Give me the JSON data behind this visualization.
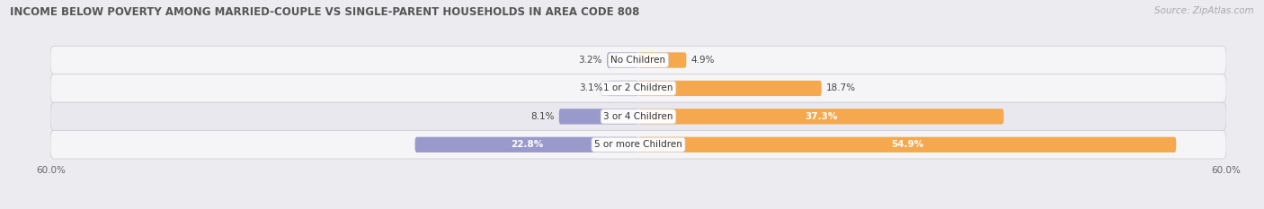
{
  "title": "INCOME BELOW POVERTY AMONG MARRIED-COUPLE VS SINGLE-PARENT HOUSEHOLDS IN AREA CODE 808",
  "source": "Source: ZipAtlas.com",
  "categories": [
    "No Children",
    "1 or 2 Children",
    "3 or 4 Children",
    "5 or more Children"
  ],
  "married_values": [
    3.2,
    3.1,
    8.1,
    22.8
  ],
  "single_values": [
    4.9,
    18.7,
    37.3,
    54.9
  ],
  "married_color": "#9999cc",
  "single_color": "#f5a84e",
  "xlim": 60.0,
  "axis_label_left": "60.0%",
  "axis_label_right": "60.0%",
  "background_color": "#ebebf0",
  "row_color_odd": "#f5f5f8",
  "row_color_even": "#e8e8ee",
  "title_fontsize": 8.5,
  "source_fontsize": 7.5,
  "label_fontsize": 7.5,
  "category_fontsize": 7.5,
  "legend_fontsize": 7.5,
  "bar_height": 0.55,
  "single_label_inside_threshold": 30.0,
  "married_label_inside_threshold": 15.0
}
